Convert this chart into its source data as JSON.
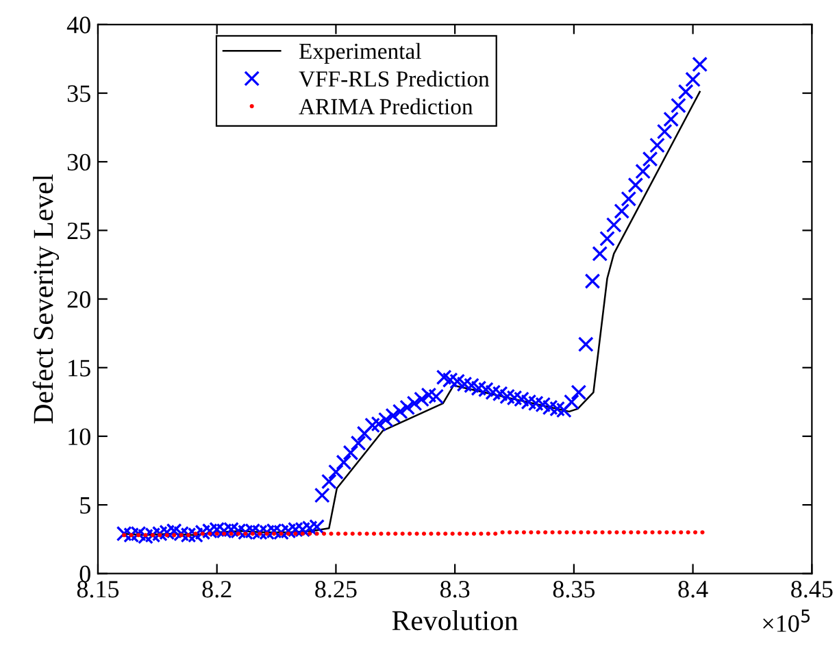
{
  "chart_data": {
    "type": "line",
    "xlabel": "Revolution",
    "ylabel": "Defect Severity Level",
    "xlim": [
      8.15,
      8.45
    ],
    "xticks": [
      8.15,
      8.2,
      8.25,
      8.3,
      8.35,
      8.4,
      8.45
    ],
    "ylim": [
      0,
      40
    ],
    "yticks": [
      0,
      5,
      10,
      15,
      20,
      25,
      30,
      35,
      40
    ],
    "grid": false,
    "legend": "top left",
    "annotations": [
      "×10$^{5}$"
    ],
    "series": [
      {
        "name": "Experimental",
        "color": "#000000",
        "marker": "none",
        "line_style": "solid",
        "x": [
          8.161,
          8.17,
          8.18,
          8.19,
          8.2,
          8.21,
          8.22,
          8.23,
          8.24,
          8.2471,
          8.2504,
          8.2697,
          8.295,
          8.2994,
          8.348,
          8.3516,
          8.3582,
          8.364,
          8.3668,
          8.4029
        ],
        "values": [
          2.9,
          2.8,
          2.9,
          2.8,
          3.0,
          3.1,
          3.0,
          3.0,
          3.1,
          3.3,
          6.2,
          10.4,
          12.4,
          13.7,
          11.8,
          12.0,
          13.2,
          21.5,
          23.3,
          35.1
        ]
      },
      {
        "name": "VFF-RLS Prediction",
        "type": "scatter",
        "color": "#0000ff",
        "marker": "cross",
        "x": [
          8.161,
          8.164,
          8.167,
          8.17,
          8.173,
          8.176,
          8.179,
          8.182,
          8.185,
          8.188,
          8.191,
          8.194,
          8.197,
          8.2,
          8.203,
          8.206,
          8.209,
          8.212,
          8.215,
          8.218,
          8.221,
          8.224,
          8.227,
          8.23,
          8.233,
          8.236,
          8.239,
          8.242,
          8.2442,
          8.2471,
          8.25,
          8.2533,
          8.2562,
          8.2594,
          8.262,
          8.2653,
          8.268,
          8.271,
          8.274,
          8.277,
          8.28,
          8.283,
          8.286,
          8.289,
          8.2921,
          8.2954,
          8.298,
          8.301,
          8.304,
          8.307,
          8.31,
          8.313,
          8.316,
          8.319,
          8.322,
          8.325,
          8.328,
          8.331,
          8.334,
          8.337,
          8.34,
          8.343,
          8.3458,
          8.349,
          8.352,
          8.355,
          8.3578,
          8.3609,
          8.364,
          8.3668,
          8.3701,
          8.373,
          8.3759,
          8.379,
          8.382,
          8.385,
          8.3881,
          8.3908,
          8.3939,
          8.397,
          8.4,
          8.4029
        ],
        "values": [
          2.9,
          2.8,
          2.9,
          2.7,
          2.8,
          2.9,
          3.0,
          3.1,
          2.9,
          2.8,
          2.8,
          3.0,
          3.1,
          3.2,
          3.1,
          3.2,
          3.1,
          3.0,
          3.1,
          3.0,
          3.0,
          3.1,
          3.0,
          3.1,
          3.2,
          3.2,
          3.3,
          3.4,
          5.7,
          6.7,
          7.4,
          8.1,
          8.8,
          9.5,
          10.2,
          10.8,
          10.9,
          11.2,
          11.5,
          11.8,
          12.1,
          12.4,
          12.7,
          13.0,
          12.9,
          14.3,
          14.1,
          14.0,
          13.8,
          13.7,
          13.5,
          13.4,
          13.2,
          13.1,
          12.9,
          12.8,
          12.7,
          12.5,
          12.4,
          12.3,
          12.1,
          12.0,
          11.9,
          12.5,
          13.2,
          16.7,
          21.3,
          23.3,
          24.4,
          25.4,
          26.4,
          27.3,
          28.3,
          29.3,
          30.2,
          31.2,
          32.2,
          33.1,
          34.1,
          35.1,
          36.0,
          37.1
        ]
      },
      {
        "name": "ARIMA Prediction",
        "type": "scatter",
        "color": "#ff0000",
        "marker": "circle",
        "x": [
          8.161,
          8.164,
          8.167,
          8.17,
          8.173,
          8.176,
          8.179,
          8.182,
          8.185,
          8.188,
          8.191,
          8.194,
          8.197,
          8.2,
          8.203,
          8.206,
          8.209,
          8.212,
          8.215,
          8.218,
          8.221,
          8.224,
          8.227,
          8.23,
          8.233,
          8.236,
          8.239,
          8.242,
          8.245,
          8.248,
          8.251,
          8.254,
          8.257,
          8.26,
          8.263,
          8.266,
          8.269,
          8.272,
          8.275,
          8.278,
          8.281,
          8.284,
          8.287,
          8.29,
          8.293,
          8.296,
          8.299,
          8.302,
          8.305,
          8.308,
          8.311,
          8.314,
          8.317,
          8.32,
          8.323,
          8.326,
          8.329,
          8.332,
          8.335,
          8.338,
          8.341,
          8.344,
          8.347,
          8.35,
          8.353,
          8.356,
          8.359,
          8.362,
          8.365,
          8.368,
          8.371,
          8.374,
          8.377,
          8.38,
          8.383,
          8.386,
          8.389,
          8.392,
          8.395,
          8.398,
          8.401,
          8.404
        ],
        "values": [
          2.8,
          2.8,
          2.8,
          2.8,
          2.8,
          2.8,
          2.8,
          2.8,
          2.8,
          2.8,
          2.9,
          2.9,
          2.9,
          2.9,
          2.9,
          2.9,
          2.9,
          2.9,
          2.9,
          2.9,
          2.9,
          2.9,
          2.9,
          2.9,
          2.9,
          2.9,
          2.9,
          2.9,
          2.9,
          2.9,
          2.9,
          2.9,
          2.9,
          2.9,
          2.9,
          2.9,
          2.9,
          2.9,
          2.9,
          2.9,
          2.9,
          2.9,
          2.9,
          2.9,
          2.9,
          2.9,
          2.9,
          2.9,
          2.9,
          2.9,
          2.9,
          2.9,
          2.9,
          3.0,
          3.0,
          3.0,
          3.0,
          3.0,
          3.0,
          3.0,
          3.0,
          3.0,
          3.0,
          3.0,
          3.0,
          3.0,
          3.0,
          3.0,
          3.0,
          3.0,
          3.0,
          3.0,
          3.0,
          3.0,
          3.0,
          3.0,
          3.0,
          3.0,
          3.0,
          3.0,
          3.0,
          3.0
        ]
      }
    ]
  }
}
